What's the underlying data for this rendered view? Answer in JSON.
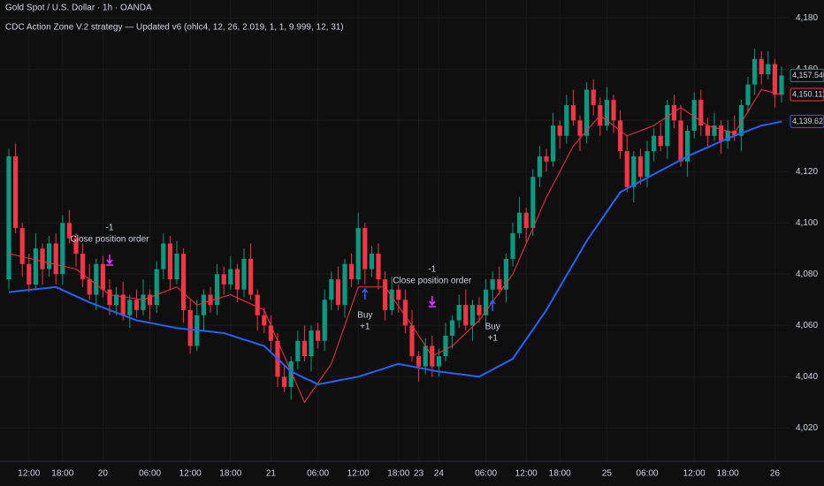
{
  "chart_data": {
    "type": "candlestick",
    "title": "Gold Spot / U.S. Dollar · 1h · OANDA",
    "subtitle": "CDC Action Zone V.2 strategy — Updated v6 (ohlc4, 12, 26, 2.019, 1, 1, 9.999, 12, 31)",
    "up_color": "#089981",
    "down_color": "#f23645",
    "categories": [
      null,
      null,
      null,
      "12:00",
      null,
      null,
      null,
      null,
      "18:00",
      null,
      null,
      null,
      null,
      null,
      "20",
      null,
      null,
      null,
      null,
      null,
      null,
      "06:00",
      null,
      null,
      null,
      null,
      null,
      "12:00",
      null,
      null,
      null,
      null,
      null,
      "18:00",
      null,
      null,
      null,
      null,
      null,
      "21",
      null,
      null,
      null,
      null,
      null,
      null,
      "06:00",
      null,
      null,
      null,
      null,
      null,
      "12:00",
      null,
      null,
      null,
      null,
      null,
      "18:00",
      null,
      null,
      "23",
      null,
      null,
      "24",
      null,
      null,
      null,
      null,
      null,
      null,
      "06:00",
      null,
      null,
      null,
      null,
      null,
      "12:00",
      null,
      null,
      null,
      null,
      "18:00",
      null,
      null,
      null,
      null,
      null,
      null,
      "25",
      null,
      null,
      null,
      null,
      null,
      "06:00",
      null,
      null,
      null,
      null,
      null,
      null,
      "12:00",
      null,
      null,
      null,
      null,
      "18:00",
      null,
      null,
      null,
      null,
      null,
      null,
      "26",
      null
    ],
    "open": [
      4078,
      4126,
      4098,
      4084,
      4076,
      4090,
      4082,
      4092,
      4080,
      4100,
      4094,
      4088,
      4078,
      4072,
      4084,
      4074,
      4068,
      4072,
      4064,
      4070,
      4066,
      4072,
      4068,
      4082,
      4092,
      4078,
      4088,
      4066,
      4052,
      4064,
      4072,
      4068,
      4080,
      4076,
      4082,
      4074,
      4086,
      4072,
      4064,
      4060,
      4054,
      4040,
      4036,
      4046,
      4054,
      4048,
      4058,
      4054,
      4070,
      4078,
      4068,
      4084,
      4078,
      4098,
      4082,
      4088,
      4078,
      4066,
      4074,
      4070,
      4060,
      4048,
      4044,
      4052,
      4044,
      4048,
      4056,
      4062,
      4068,
      4060,
      4068,
      4064,
      4074,
      4078,
      4074,
      4086,
      4096,
      4104,
      4098,
      4118,
      4126,
      4124,
      4138,
      4134,
      4146,
      4140,
      4134,
      4152,
      4146,
      4138,
      4148,
      4140,
      4128,
      4114,
      4126,
      4118,
      4128,
      4134,
      4130,
      4146,
      4140,
      4124,
      4136,
      4148,
      4138,
      4134,
      4138,
      4132,
      4136,
      4134,
      4146,
      4154,
      4164,
      4158,
      4162,
      4150
    ],
    "high": [
      4129,
      4131,
      4100,
      4088,
      4096,
      4092,
      4095,
      4096,
      4103,
      4105,
      4096,
      4092,
      4084,
      4086,
      4087,
      4078,
      4075,
      4077,
      4072,
      4074,
      4078,
      4074,
      4085,
      4096,
      4095,
      4093,
      4090,
      4070,
      4070,
      4074,
      4075,
      4084,
      4083,
      4087,
      4084,
      4090,
      4092,
      4074,
      4067,
      4064,
      4057,
      4045,
      4048,
      4058,
      4060,
      4060,
      4061,
      4074,
      4081,
      4083,
      4086,
      4088,
      4104,
      4100,
      4091,
      4092,
      4081,
      4079,
      4076,
      4074,
      4066,
      4050,
      4055,
      4056,
      4051,
      4061,
      4064,
      4072,
      4074,
      4070,
      4071,
      4078,
      4081,
      4083,
      4088,
      4100,
      4110,
      4106,
      4121,
      4130,
      4129,
      4143,
      4140,
      4150,
      4152,
      4142,
      4155,
      4156,
      4149,
      4153,
      4150,
      4144,
      4134,
      4128,
      4129,
      4132,
      4137,
      4139,
      4148,
      4150,
      4146,
      4138,
      4151,
      4152,
      4141,
      4143,
      4140,
      4140,
      4142,
      4148,
      4157,
      4168,
      4167,
      4167,
      4164,
      4161
    ],
    "low": [
      4074,
      4096,
      4079,
      4073,
      4074,
      4076,
      4079,
      4076,
      4076,
      4092,
      4083,
      4075,
      4070,
      4066,
      4071,
      4064,
      4064,
      4062,
      4059,
      4063,
      4064,
      4062,
      4065,
      4078,
      4074,
      4076,
      4061,
      4049,
      4050,
      4058,
      4065,
      4064,
      4072,
      4074,
      4069,
      4071,
      4070,
      4058,
      4057,
      4050,
      4036,
      4034,
      4031,
      4043,
      4046,
      4042,
      4051,
      4050,
      4066,
      4066,
      4063,
      4075,
      4076,
      4076,
      4079,
      4074,
      4062,
      4064,
      4065,
      4057,
      4046,
      4038,
      4041,
      4040,
      4040,
      4046,
      4051,
      4059,
      4058,
      4054,
      4061,
      4060,
      4070,
      4072,
      4069,
      4083,
      4094,
      4092,
      4095,
      4114,
      4120,
      4122,
      4129,
      4131,
      4138,
      4128,
      4131,
      4142,
      4134,
      4136,
      4135,
      4125,
      4112,
      4108,
      4115,
      4114,
      4124,
      4128,
      4125,
      4137,
      4122,
      4118,
      4133,
      4134,
      4130,
      4132,
      4127,
      4129,
      4132,
      4128,
      4143,
      4150,
      4154,
      4156,
      4145,
      4147
    ],
    "close": [
      4126,
      4098,
      4084,
      4076,
      4090,
      4082,
      4092,
      4080,
      4100,
      4094,
      4088,
      4078,
      4072,
      4084,
      4074,
      4068,
      4072,
      4064,
      4070,
      4066,
      4072,
      4068,
      4082,
      4092,
      4078,
      4088,
      4066,
      4052,
      4064,
      4072,
      4068,
      4080,
      4076,
      4082,
      4074,
      4086,
      4072,
      4064,
      4060,
      4054,
      4040,
      4036,
      4046,
      4054,
      4048,
      4058,
      4054,
      4070,
      4078,
      4068,
      4084,
      4078,
      4098,
      4082,
      4088,
      4078,
      4066,
      4074,
      4070,
      4060,
      4048,
      4044,
      4052,
      4044,
      4048,
      4056,
      4062,
      4068,
      4060,
      4068,
      4064,
      4074,
      4078,
      4074,
      4086,
      4096,
      4104,
      4098,
      4118,
      4126,
      4124,
      4138,
      4134,
      4146,
      4140,
      4134,
      4152,
      4146,
      4138,
      4148,
      4140,
      4128,
      4114,
      4126,
      4118,
      4128,
      4134,
      4130,
      4146,
      4140,
      4124,
      4136,
      4148,
      4138,
      4134,
      4138,
      4132,
      4136,
      4134,
      4146,
      4154,
      4164,
      4158,
      4162,
      4150,
      4157.54
    ],
    "lines": [
      {
        "color": "#f23645",
        "values": [
          4088,
          4087.4,
          4086.8,
          4086.2,
          4085.6,
          4085,
          4084.4,
          4083.8,
          4083.2,
          4082.6,
          4082,
          4080,
          4078,
          4076,
          4074,
          4072,
          4071.6,
          4071.2,
          4070.8,
          4070.4,
          4070,
          4071,
          4072,
          4073,
          4074,
          4075,
          4072.7,
          4070.3,
          4068,
          4068.8,
          4069.6,
          4070.4,
          4071.2,
          4072,
          4070.8,
          4069.6,
          4068.4,
          4067.2,
          4066,
          4060,
          4054,
          4048,
          4042,
          4036,
          4030,
          4033.8,
          4037.5,
          4041.3,
          4045,
          4052.5,
          4060,
          4067.5,
          4075,
          4075,
          4075,
          4075,
          4075,
          4071.3,
          4067.5,
          4063.8,
          4060,
          4056,
          4052,
          4048,
          4049.3,
          4050.7,
          4052,
          4054.5,
          4057,
          4059.5,
          4062,
          4065.6,
          4069.2,
          4072.8,
          4076.4,
          4080,
          4086,
          4092,
          4098,
          4104,
          4110,
          4115,
          4120,
          4125,
          4130,
          4133,
          4136,
          4139,
          4142,
          4140,
          4138,
          4136,
          4134,
          4135,
          4136,
          4137,
          4138,
          4139.8,
          4141.5,
          4143.3,
          4145,
          4143.3,
          4141.5,
          4139.8,
          4138,
          4137.3,
          4136.5,
          4135.8,
          4135,
          4139.3,
          4143.5,
          4147.8,
          4152,
          4151.4,
          4150.7,
          4150.1
        ]
      },
      {
        "color": "#2962ff",
        "values": [
          4073,
          4073.3,
          4073.6,
          4073.9,
          4074.1,
          4074.4,
          4074.7,
          4075,
          4073.8,
          4072.6,
          4071.4,
          4070.2,
          4069,
          4068,
          4067,
          4066,
          4065,
          4064,
          4063,
          4062,
          4061.5,
          4061,
          4060.5,
          4060,
          4059.5,
          4059,
          4058.7,
          4058.4,
          4058.1,
          4057.9,
          4057.6,
          4057.3,
          4057,
          4056.2,
          4055.3,
          4054.5,
          4053.7,
          4052.8,
          4052,
          4049.5,
          4047,
          4044.5,
          4042,
          4040.8,
          4039.5,
          4038.3,
          4037,
          4037.5,
          4038,
          4038.5,
          4039,
          4039.5,
          4040,
          4040.8,
          4041.7,
          4042.5,
          4043.3,
          4044.2,
          4045,
          4044.5,
          4044,
          4043.5,
          4043,
          4042.5,
          4042,
          4041.7,
          4041.3,
          4041,
          4040.7,
          4040.3,
          4040,
          4041.4,
          4042.8,
          4044.2,
          4045.6,
          4047,
          4050.8,
          4054.6,
          4058.4,
          4062.2,
          4066,
          4070.5,
          4075,
          4079.5,
          4084,
          4088.5,
          4093,
          4096.8,
          4100.6,
          4104.4,
          4108.2,
          4112,
          4113.4,
          4114.8,
          4116.2,
          4117.6,
          4119,
          4120.4,
          4121.8,
          4123.2,
          4124.6,
          4126,
          4127.2,
          4128.3,
          4129.5,
          4130.7,
          4131.8,
          4133,
          4134,
          4135,
          4136,
          4137,
          4138,
          4138.5,
          4139,
          4139.6
        ]
      }
    ],
    "price_labels": [
      {
        "value": 4150.111,
        "label": "4,150.111",
        "color": "#f23645"
      },
      {
        "value": 4157.54,
        "label": "4,157.540",
        "color": "#089981"
      },
      {
        "value": 4139.627,
        "label": "4,139.627",
        "color": "#2962ff"
      }
    ],
    "annotations": [
      {
        "lines": [
          "-1",
          "Close position order"
        ],
        "color": "#e040fb",
        "kind": "close"
      },
      {
        "lines": [
          "-1",
          "Close position order"
        ],
        "color": "#e040fb",
        "kind": "close"
      },
      {
        "lines": [
          "Buy",
          "+1"
        ],
        "color": "#2962ff",
        "kind": "buy"
      },
      {
        "lines": [
          "Buy",
          "+1"
        ],
        "color": "#2962ff",
        "kind": "buy"
      }
    ],
    "ylim": [
      4007,
      4187
    ],
    "yticks": [
      {
        "value": 4020,
        "label": "4,020"
      },
      {
        "value": 4040,
        "label": "4,040"
      },
      {
        "value": 4060,
        "label": "4,060"
      },
      {
        "value": 4080,
        "label": "4,080"
      },
      {
        "value": 4100,
        "label": "4,100"
      },
      {
        "value": 4120,
        "label": "4,120"
      },
      {
        "value": 4140,
        "label": "4,140"
      },
      {
        "value": 4160,
        "label": "4,160"
      },
      {
        "value": 4180,
        "label": "4,180"
      }
    ],
    "grid": true
  }
}
